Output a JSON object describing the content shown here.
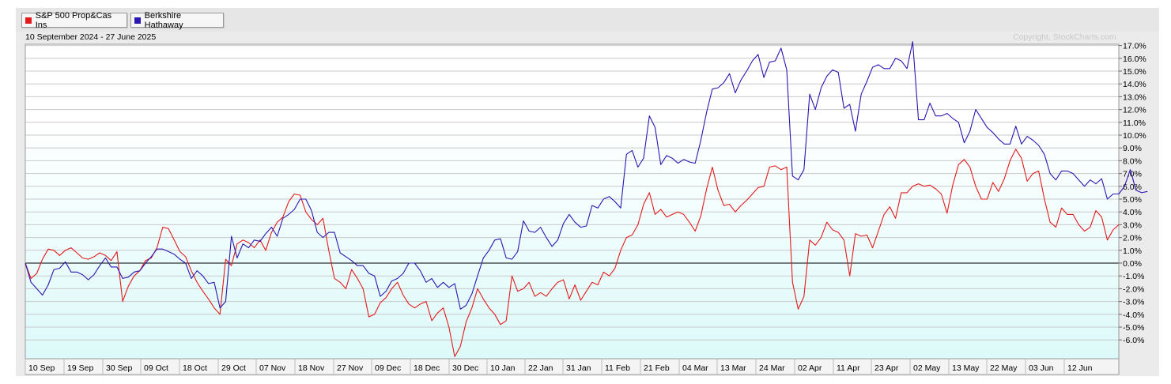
{
  "legend": [
    {
      "label": "S&P 500 Prop&Cas Ins",
      "color": "#e31a1c"
    },
    {
      "label": "Berkshire Hathaway",
      "color": "#2a16b0"
    }
  ],
  "date_range": "10 September 2024 - 27 June 2025",
  "copyright": "Copyright, StockCharts.com",
  "chart_data": {
    "type": "line",
    "ylim": [
      -7.5,
      17.5
    ],
    "yticks": [
      "17.0%",
      "16.0%",
      "15.0%",
      "14.0%",
      "13.0%",
      "12.0%",
      "11.0%",
      "10.0%",
      "9.0%",
      "8.0%",
      "7.0%",
      "6.0%",
      "5.0%",
      "4.0%",
      "3.0%",
      "2.0%",
      "1.0%",
      "0.0%",
      "-1.0%",
      "-2.0%",
      "-3.0%",
      "-4.0%",
      "-5.0%",
      "-6.0%"
    ],
    "xlabels": [
      "10 Sep",
      "19 Sep",
      "30 Sep",
      "09 Oct",
      "18 Oct",
      "29 Oct",
      "07 Nov",
      "18 Nov",
      "27 Nov",
      "09 Dec",
      "18 Dec",
      "30 Dec",
      "10 Jan",
      "22 Jan",
      "31 Jan",
      "11 Feb",
      "21 Feb",
      "04 Mar",
      "13 Mar",
      "24 Mar",
      "02 Apr",
      "11 Apr",
      "23 Apr",
      "02 May",
      "13 May",
      "22 May",
      "03 Jun",
      "12 Jun"
    ],
    "series": [
      {
        "name": "S&P 500 Prop&Cas Ins",
        "color": "#e31a1c",
        "values": [
          0.0,
          -1.2,
          -0.8,
          0.3,
          1.1,
          1.0,
          0.6,
          1.0,
          1.2,
          0.8,
          0.4,
          0.3,
          0.5,
          0.8,
          0.6,
          0.2,
          0.9,
          -3.0,
          -1.8,
          -1.0,
          -0.6,
          0.2,
          0.4,
          1.2,
          2.8,
          2.7,
          1.8,
          0.9,
          0.5,
          -0.6,
          -1.5,
          -2.2,
          -2.8,
          -3.5,
          -4.0,
          0.3,
          -0.2,
          1.5,
          1.8,
          1.6,
          1.2,
          1.8,
          1.0,
          2.4,
          3.2,
          3.6,
          4.8,
          5.4,
          5.3,
          4.0,
          3.4,
          3.0,
          3.5,
          1.0,
          -1.2,
          -1.5,
          -2.0,
          -0.5,
          -1.2,
          -2.0,
          -4.2,
          -4.0,
          -3.1,
          -2.7,
          -2.0,
          -1.5,
          -2.5,
          -3.2,
          -3.5,
          -3.2,
          -3.0,
          -4.5,
          -3.9,
          -3.5,
          -5.0,
          -7.3,
          -6.5,
          -4.6,
          -3.5,
          -2.0,
          -2.8,
          -3.5,
          -4.0,
          -4.8,
          -4.5,
          -1.0,
          -2.2,
          -2.0,
          -1.5,
          -2.6,
          -2.3,
          -2.6,
          -2.0,
          -1.5,
          -1.3,
          -2.8,
          -1.7,
          -2.9,
          -2.2,
          -1.5,
          -1.7,
          -0.7,
          -1.0,
          -0.4,
          1.0,
          2.0,
          2.2,
          3.0,
          4.6,
          5.5,
          3.8,
          4.2,
          3.6,
          3.8,
          4.0,
          3.8,
          3.2,
          2.5,
          3.7,
          5.8,
          7.5,
          5.7,
          4.5,
          4.6,
          4.0,
          4.5,
          4.9,
          5.4,
          5.9,
          6.0,
          7.5,
          7.6,
          7.3,
          7.5,
          -1.5,
          -3.6,
          -2.6,
          1.8,
          1.4,
          2.0,
          3.2,
          2.6,
          2.4,
          1.8,
          -1.0,
          2.3,
          2.1,
          2.2,
          1.2,
          2.5,
          3.8,
          4.4,
          3.5,
          5.5,
          5.5,
          6.0,
          6.2,
          6.0,
          6.1,
          5.8,
          5.4,
          3.9,
          6.1,
          7.7,
          8.1,
          7.5,
          6.0,
          5.0,
          5.0,
          6.3,
          5.6,
          6.6,
          8.0,
          8.9,
          8.2,
          6.4,
          7.0,
          7.2,
          5.0,
          3.2,
          2.8,
          4.3,
          3.8,
          3.8,
          3.0,
          2.5,
          2.8,
          4.1,
          3.6,
          1.8,
          2.6,
          3.0
        ]
      },
      {
        "name": "Berkshire Hathaway",
        "color": "#2a16b0",
        "values": [
          0.0,
          -1.5,
          -2.0,
          -2.5,
          -1.7,
          -0.5,
          -0.4,
          0.1,
          -0.7,
          -0.7,
          -0.9,
          -1.3,
          -0.9,
          -0.2,
          0.4,
          -0.3,
          -0.3,
          -1.2,
          -1.1,
          -0.7,
          -0.6,
          0.0,
          0.5,
          1.1,
          1.1,
          0.9,
          0.7,
          0.3,
          0.0,
          -1.2,
          -0.6,
          -1.0,
          -1.6,
          -1.5,
          -3.5,
          -3.0,
          2.1,
          0.4,
          1.5,
          1.2,
          1.8,
          1.7,
          2.3,
          2.8,
          2.1,
          3.5,
          3.8,
          4.2,
          5.0,
          5.0,
          4.1,
          2.4,
          2.0,
          2.4,
          2.4,
          0.8,
          0.5,
          0.2,
          -0.2,
          -0.2,
          -0.8,
          -1.0,
          -2.6,
          -2.2,
          -1.4,
          -1.2,
          -0.8,
          0.0,
          0.0,
          -0.6,
          -1.5,
          -1.2,
          -1.9,
          -1.5,
          -1.9,
          -1.6,
          -3.6,
          -3.3,
          -2.4,
          -1.0,
          0.4,
          1.0,
          1.8,
          1.9,
          0.4,
          0.3,
          0.9,
          3.3,
          2.5,
          2.4,
          2.8,
          2.0,
          1.3,
          1.8,
          3.1,
          3.8,
          3.2,
          2.8,
          2.9,
          4.5,
          4.3,
          5.0,
          5.2,
          4.8,
          4.3,
          8.5,
          8.8,
          7.5,
          8.2,
          11.5,
          10.6,
          7.7,
          8.4,
          8.2,
          7.8,
          8.1,
          7.9,
          7.8,
          9.6,
          11.8,
          13.6,
          13.7,
          14.1,
          14.8,
          13.3,
          14.3,
          15.0,
          15.8,
          16.3,
          14.5,
          15.7,
          15.8,
          16.8,
          15.1,
          6.8,
          6.5,
          7.3,
          13.2,
          12.0,
          13.7,
          14.6,
          15.1,
          14.9,
          12.1,
          12.4,
          10.3,
          13.2,
          14.2,
          15.3,
          15.5,
          15.2,
          15.2,
          16.0,
          15.8,
          15.2,
          17.3,
          11.2,
          11.2,
          12.5,
          11.5,
          11.5,
          11.7,
          11.3,
          11.0,
          9.4,
          10.3,
          12.0,
          11.3,
          10.6,
          10.2,
          9.7,
          9.3,
          9.3,
          10.7,
          9.3,
          9.9,
          9.6,
          9.2,
          8.5,
          7.0,
          6.5,
          7.2,
          7.2,
          7.0,
          6.5,
          6.0,
          6.5,
          6.2,
          6.6,
          5.0,
          5.4,
          5.4,
          6.0,
          7.3,
          5.7,
          5.5,
          5.6
        ]
      }
    ]
  }
}
